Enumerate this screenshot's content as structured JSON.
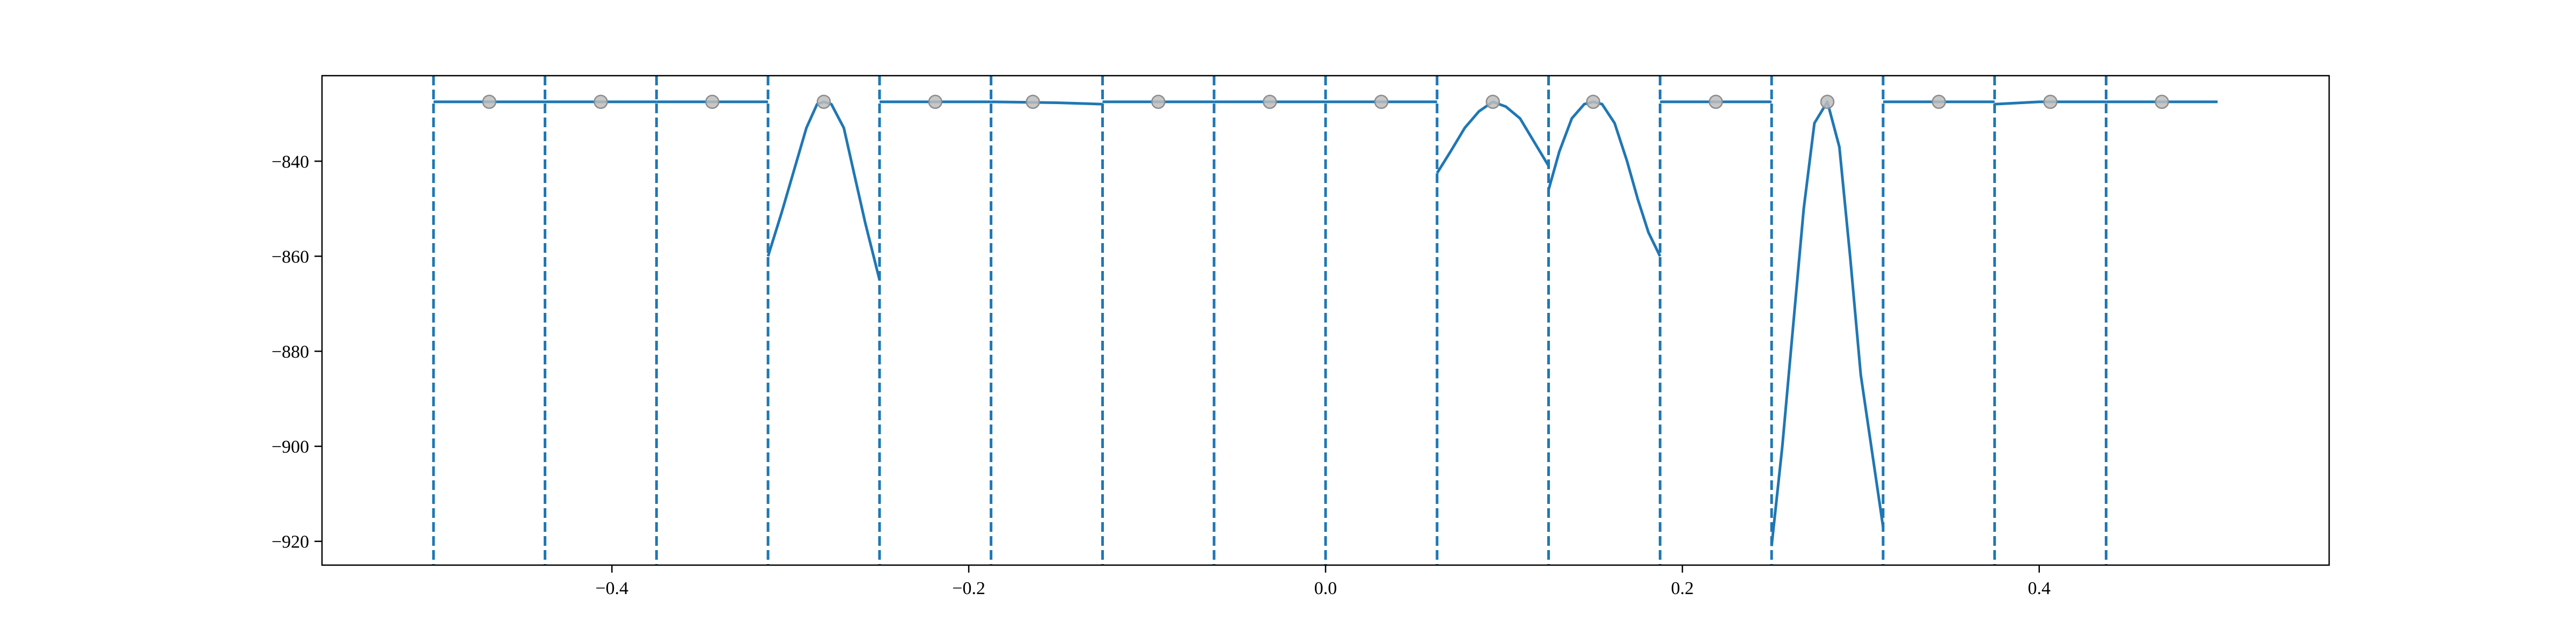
{
  "chart_data": {
    "type": "line",
    "title": "",
    "xlabel": "",
    "ylabel": "",
    "xlim": [
      -0.5625,
      0.5625
    ],
    "ylim": [
      -925,
      -822
    ],
    "xticks": [
      -0.4,
      -0.2,
      0.0,
      0.2,
      0.4
    ],
    "xtick_labels": [
      "−0.4",
      "−0.2",
      "0.0",
      "0.2",
      "0.4"
    ],
    "yticks": [
      -920,
      -900,
      -880,
      -860,
      -840
    ],
    "ytick_labels": [
      "−920",
      "−900",
      "−880",
      "−860",
      "−840"
    ],
    "grid": false,
    "colors": {
      "line": "#1f77b4",
      "marker_fill": "#bdbdbd",
      "marker_edge": "#8c8c8c"
    },
    "vertical_lines": {
      "style": "dashed",
      "x": [
        -0.5,
        -0.4375,
        -0.375,
        -0.3125,
        -0.25,
        -0.1875,
        -0.125,
        -0.0625,
        0.0,
        0.0625,
        0.125,
        0.1875,
        0.25,
        0.3125,
        0.375,
        0.4375
      ]
    },
    "series": [
      {
        "style": "line",
        "segments": [
          [
            [
              -0.5,
              -827.5
            ],
            [
              -0.4375,
              -827.5
            ]
          ],
          [
            [
              -0.4375,
              -827.5
            ],
            [
              -0.375,
              -827.5
            ]
          ],
          [
            [
              -0.375,
              -827.5
            ],
            [
              -0.3125,
              -827.5
            ]
          ],
          [
            [
              -0.3125,
              -860
            ],
            [
              -0.305,
              -851
            ],
            [
              -0.298,
              -842
            ],
            [
              -0.291,
              -833
            ],
            [
              -0.285,
              -828
            ],
            [
              -0.28125,
              -827.5
            ],
            [
              -0.277,
              -828
            ],
            [
              -0.27,
              -833
            ],
            [
              -0.264,
              -843
            ],
            [
              -0.258,
              -853
            ],
            [
              -0.25,
              -865
            ]
          ],
          [
            [
              -0.25,
              -827.5
            ],
            [
              -0.1875,
              -827.5
            ]
          ],
          [
            [
              -0.1875,
              -827.5
            ],
            [
              -0.15,
              -827.7
            ],
            [
              -0.125,
              -828
            ]
          ],
          [
            [
              -0.125,
              -827.5
            ],
            [
              -0.0625,
              -827.5
            ]
          ],
          [
            [
              -0.0625,
              -827.5
            ],
            [
              0.0,
              -827.5
            ]
          ],
          [
            [
              0.0,
              -827.5
            ],
            [
              0.0625,
              -827.5
            ]
          ],
          [
            [
              0.0625,
              -842.5
            ],
            [
              0.07,
              -838
            ],
            [
              0.078,
              -833
            ],
            [
              0.086,
              -829.5
            ],
            [
              0.09375,
              -827.5
            ],
            [
              0.101,
              -828.5
            ],
            [
              0.109,
              -831
            ],
            [
              0.117,
              -836
            ],
            [
              0.125,
              -841
            ]
          ],
          [
            [
              0.125,
              -846
            ],
            [
              0.131,
              -838
            ],
            [
              0.138,
              -831
            ],
            [
              0.145,
              -828
            ],
            [
              0.15,
              -827.5
            ],
            [
              0.155,
              -828
            ],
            [
              0.162,
              -832
            ],
            [
              0.169,
              -840
            ],
            [
              0.175,
              -848
            ],
            [
              0.181,
              -855
            ],
            [
              0.1875,
              -860
            ]
          ],
          [
            [
              0.1875,
              -827.5
            ],
            [
              0.25,
              -827.5
            ]
          ],
          [
            [
              0.25,
              -921
            ],
            [
              0.256,
              -900
            ],
            [
              0.262,
              -875
            ],
            [
              0.268,
              -850
            ],
            [
              0.274,
              -832
            ],
            [
              0.28125,
              -827.5
            ],
            [
              0.288,
              -837
            ],
            [
              0.294,
              -860
            ],
            [
              0.3,
              -885
            ],
            [
              0.3125,
              -917
            ]
          ],
          [
            [
              0.3125,
              -827.5
            ],
            [
              0.375,
              -827.5
            ]
          ],
          [
            [
              0.375,
              -828
            ],
            [
              0.4,
              -827.5
            ],
            [
              0.4375,
              -827.5
            ]
          ],
          [
            [
              0.4375,
              -827.5
            ],
            [
              0.5,
              -827.5
            ]
          ]
        ]
      },
      {
        "style": "markers",
        "x": [
          -0.46875,
          -0.40625,
          -0.34375,
          -0.28125,
          -0.21875,
          -0.16406,
          -0.09375,
          -0.03125,
          0.03125,
          0.09375,
          0.15,
          0.21875,
          0.28125,
          0.34375,
          0.40625,
          0.46875
        ],
        "y": [
          -827.5,
          -827.5,
          -827.5,
          -827.5,
          -827.5,
          -827.5,
          -827.5,
          -827.5,
          -827.5,
          -827.5,
          -827.5,
          -827.5,
          -827.5,
          -827.5,
          -827.5,
          -827.5
        ]
      }
    ]
  }
}
